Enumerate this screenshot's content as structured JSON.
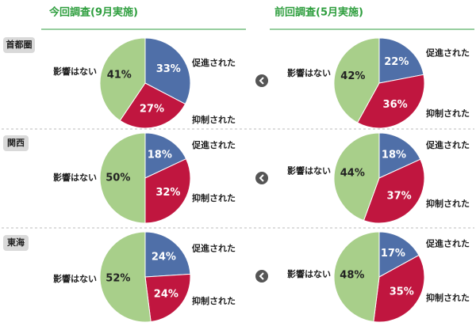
{
  "header": {
    "columns": [
      "今回調査(9月実施)",
      "前回調査(5月実施)"
    ],
    "regions": [
      "首都圏",
      "関西",
      "東海"
    ]
  },
  "chart_data": [
    {
      "type": "pie",
      "categories": [
        "促進された",
        "抑制された",
        "影響はない"
      ],
      "values": [
        33,
        27,
        41
      ],
      "value_labels": [
        "33%",
        "27%",
        "41%"
      ],
      "colors": [
        "#4f6fa8",
        "#c0163f",
        "#a8cf8a"
      ]
    },
    {
      "type": "pie",
      "categories": [
        "促進された",
        "抑制された",
        "影響はない"
      ],
      "values": [
        22,
        36,
        42
      ],
      "value_labels": [
        "22%",
        "36%",
        "42%"
      ],
      "colors": [
        "#4f6fa8",
        "#c0163f",
        "#a8cf8a"
      ]
    },
    {
      "type": "pie",
      "categories": [
        "促進された",
        "抑制された",
        "影響はない"
      ],
      "values": [
        18,
        32,
        50
      ],
      "value_labels": [
        "18%",
        "32%",
        "50%"
      ],
      "colors": [
        "#4f6fa8",
        "#c0163f",
        "#a8cf8a"
      ]
    },
    {
      "type": "pie",
      "categories": [
        "促進された",
        "抑制された",
        "影響はない"
      ],
      "values": [
        18,
        37,
        44
      ],
      "value_labels": [
        "18%",
        "37%",
        "44%"
      ],
      "colors": [
        "#4f6fa8",
        "#c0163f",
        "#a8cf8a"
      ]
    },
    {
      "type": "pie",
      "categories": [
        "促進された",
        "抑制された",
        "影響はない"
      ],
      "values": [
        24,
        24,
        52
      ],
      "value_labels": [
        "24%",
        "24%",
        "52%"
      ],
      "colors": [
        "#4f6fa8",
        "#c0163f",
        "#a8cf8a"
      ]
    },
    {
      "type": "pie",
      "categories": [
        "促進された",
        "抑制された",
        "影響はない"
      ],
      "values": [
        17,
        35,
        48
      ],
      "value_labels": [
        "17%",
        "35%",
        "48%"
      ],
      "colors": [
        "#4f6fa8",
        "#c0163f",
        "#a8cf8a"
      ]
    }
  ]
}
